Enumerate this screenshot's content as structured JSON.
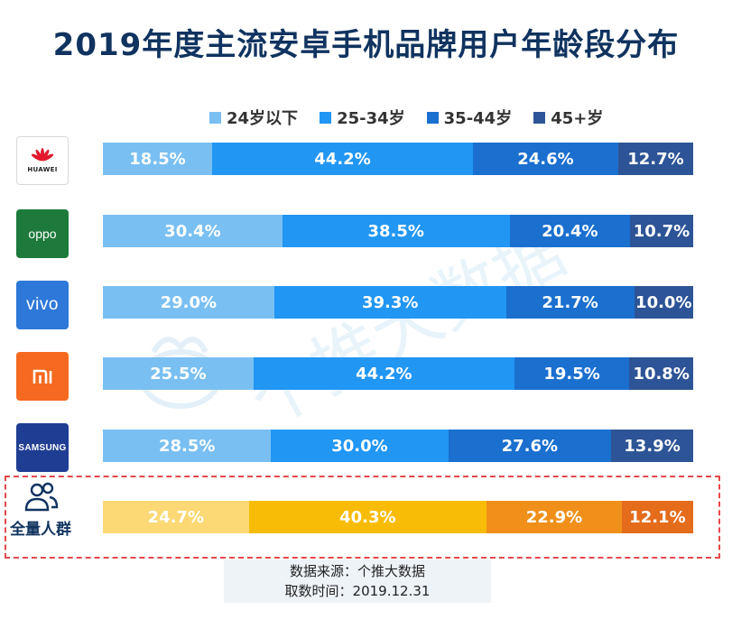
{
  "chart_data": {
    "type": "bar",
    "orientation": "horizontal",
    "stacked": true,
    "percent": true,
    "title": "2019年度主流安卓手机品牌用户年龄段分布",
    "categories": [
      "HUAWEI",
      "oppo",
      "vivo",
      "mi",
      "SAMSUNG",
      "全量人群"
    ],
    "series": [
      {
        "name": "24岁以下",
        "values": [
          18.5,
          30.4,
          29.0,
          25.5,
          28.5,
          24.7
        ],
        "labels": [
          "18.5%",
          "30.4%",
          "29.0%",
          "25.5%",
          "28.5%",
          "24.7%"
        ]
      },
      {
        "name": "25-34岁",
        "values": [
          44.2,
          38.5,
          39.3,
          44.2,
          30.0,
          40.3
        ],
        "labels": [
          "44.2%",
          "38.5%",
          "39.3%",
          "44.2%",
          "30.0%",
          "40.3%"
        ]
      },
      {
        "name": "35-44岁",
        "values": [
          24.6,
          20.4,
          21.7,
          19.5,
          27.6,
          22.9
        ],
        "labels": [
          "24.6%",
          "20.4%",
          "21.7%",
          "19.5%",
          "27.6%",
          "22.9%"
        ]
      },
      {
        "name": "45+岁",
        "values": [
          12.7,
          10.7,
          10.0,
          10.8,
          13.9,
          12.1
        ],
        "labels": [
          "12.7%",
          "10.7%",
          "10.0%",
          "10.8%",
          "13.9%",
          "12.1%"
        ]
      }
    ],
    "legend_position": "top",
    "xlim": [
      0,
      100
    ]
  },
  "colors": {
    "brand_series": [
      "#79bff2",
      "#2196f3",
      "#1a6fcf",
      "#2d5496"
    ],
    "total_series": [
      "#fcd975",
      "#f9bc06",
      "#f0901a",
      "#e46c1a"
    ],
    "title": "#10335f",
    "highlight_border": "#e4484a"
  },
  "logos": {
    "huawei": {
      "icon": "huawei-flower-icon",
      "text": "HUAWEI"
    },
    "oppo": {
      "text": "oppo"
    },
    "vivo": {
      "text": "vivo"
    },
    "mi": {
      "icon": "mi-logo-icon"
    },
    "samsung": {
      "text": "SAMSUNG"
    }
  },
  "total_group": {
    "icon": "people-icon",
    "label": "全量人群"
  },
  "source": {
    "line1": "数据来源：个推大数据",
    "line2": "取数时间：2019.12.31"
  },
  "watermark": "个推大数据"
}
